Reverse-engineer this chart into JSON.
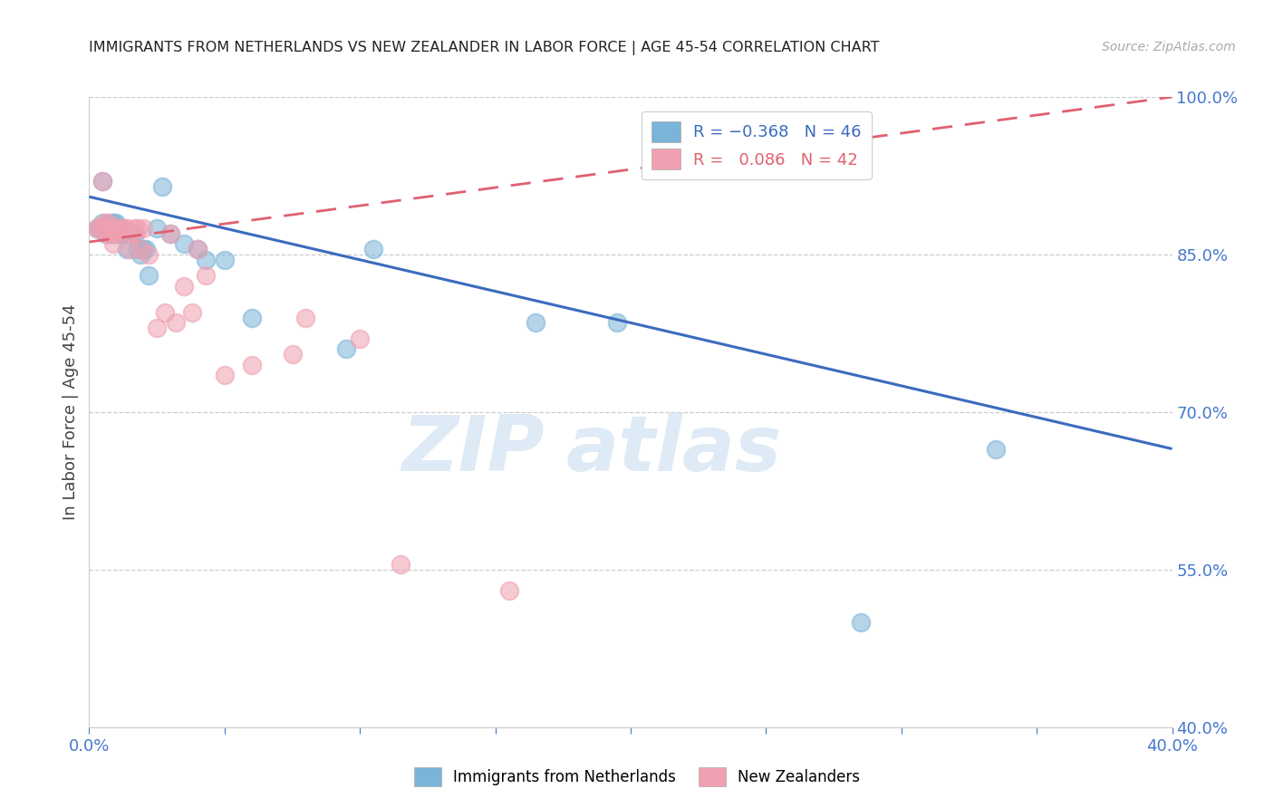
{
  "title": "IMMIGRANTS FROM NETHERLANDS VS NEW ZEALANDER IN LABOR FORCE | AGE 45-54 CORRELATION CHART",
  "source": "Source: ZipAtlas.com",
  "ylabel": "In Labor Force | Age 45-54",
  "x_min": 0.0,
  "x_max": 0.4,
  "y_min": 0.4,
  "y_max": 1.0,
  "x_ticks": [
    0.0,
    0.05,
    0.1,
    0.15,
    0.2,
    0.25,
    0.3,
    0.35,
    0.4
  ],
  "x_tick_labels": [
    "0.0%",
    "",
    "",
    "",
    "",
    "",
    "",
    "",
    "40.0%"
  ],
  "y_ticks": [
    0.4,
    0.55,
    0.7,
    0.85,
    1.0
  ],
  "y_tick_labels": [
    "40.0%",
    "55.0%",
    "70.0%",
    "85.0%",
    "100.0%"
  ],
  "blue_scatter_x": [
    0.003,
    0.004,
    0.005,
    0.005,
    0.006,
    0.006,
    0.006,
    0.007,
    0.007,
    0.008,
    0.008,
    0.008,
    0.009,
    0.009,
    0.009,
    0.01,
    0.01,
    0.01,
    0.01,
    0.011,
    0.011,
    0.012,
    0.013,
    0.014,
    0.015,
    0.016,
    0.017,
    0.018,
    0.019,
    0.02,
    0.021,
    0.022,
    0.025,
    0.027,
    0.03,
    0.035,
    0.04,
    0.043,
    0.05,
    0.06,
    0.095,
    0.105,
    0.165,
    0.195,
    0.285,
    0.335
  ],
  "blue_scatter_y": [
    0.875,
    0.875,
    0.92,
    0.88,
    0.875,
    0.87,
    0.875,
    0.87,
    0.875,
    0.87,
    0.875,
    0.88,
    0.87,
    0.875,
    0.88,
    0.87,
    0.875,
    0.88,
    0.875,
    0.87,
    0.875,
    0.875,
    0.87,
    0.855,
    0.87,
    0.87,
    0.87,
    0.855,
    0.85,
    0.855,
    0.855,
    0.83,
    0.875,
    0.915,
    0.87,
    0.86,
    0.855,
    0.845,
    0.845,
    0.79,
    0.76,
    0.855,
    0.785,
    0.785,
    0.5,
    0.665
  ],
  "pink_scatter_x": [
    0.003,
    0.004,
    0.005,
    0.005,
    0.006,
    0.006,
    0.007,
    0.007,
    0.007,
    0.008,
    0.008,
    0.009,
    0.009,
    0.01,
    0.01,
    0.011,
    0.012,
    0.013,
    0.014,
    0.015,
    0.015,
    0.016,
    0.017,
    0.018,
    0.019,
    0.02,
    0.022,
    0.025,
    0.028,
    0.03,
    0.032,
    0.035,
    0.038,
    0.04,
    0.043,
    0.05,
    0.06,
    0.075,
    0.08,
    0.1,
    0.115,
    0.155
  ],
  "pink_scatter_y": [
    0.875,
    0.875,
    0.92,
    0.875,
    0.88,
    0.875,
    0.87,
    0.875,
    0.88,
    0.87,
    0.875,
    0.86,
    0.87,
    0.875,
    0.87,
    0.875,
    0.875,
    0.875,
    0.875,
    0.87,
    0.855,
    0.87,
    0.875,
    0.875,
    0.855,
    0.875,
    0.85,
    0.78,
    0.795,
    0.87,
    0.785,
    0.82,
    0.795,
    0.855,
    0.83,
    0.735,
    0.745,
    0.755,
    0.79,
    0.77,
    0.555,
    0.53
  ],
  "blue_line_x": [
    0.0,
    0.4
  ],
  "blue_line_y": [
    0.905,
    0.665
  ],
  "pink_line_x": [
    0.0,
    0.4
  ],
  "pink_line_y": [
    0.862,
    1.0
  ],
  "scatter_color_blue": "#7ab4d8",
  "scatter_color_pink": "#f0a0b0",
  "line_color_blue": "#3b6bbf",
  "line_color_pink": "#e06070",
  "watermark_zip": "ZIP",
  "watermark_atlas": "atlas",
  "background_color": "#ffffff",
  "grid_color": "#cccccc"
}
